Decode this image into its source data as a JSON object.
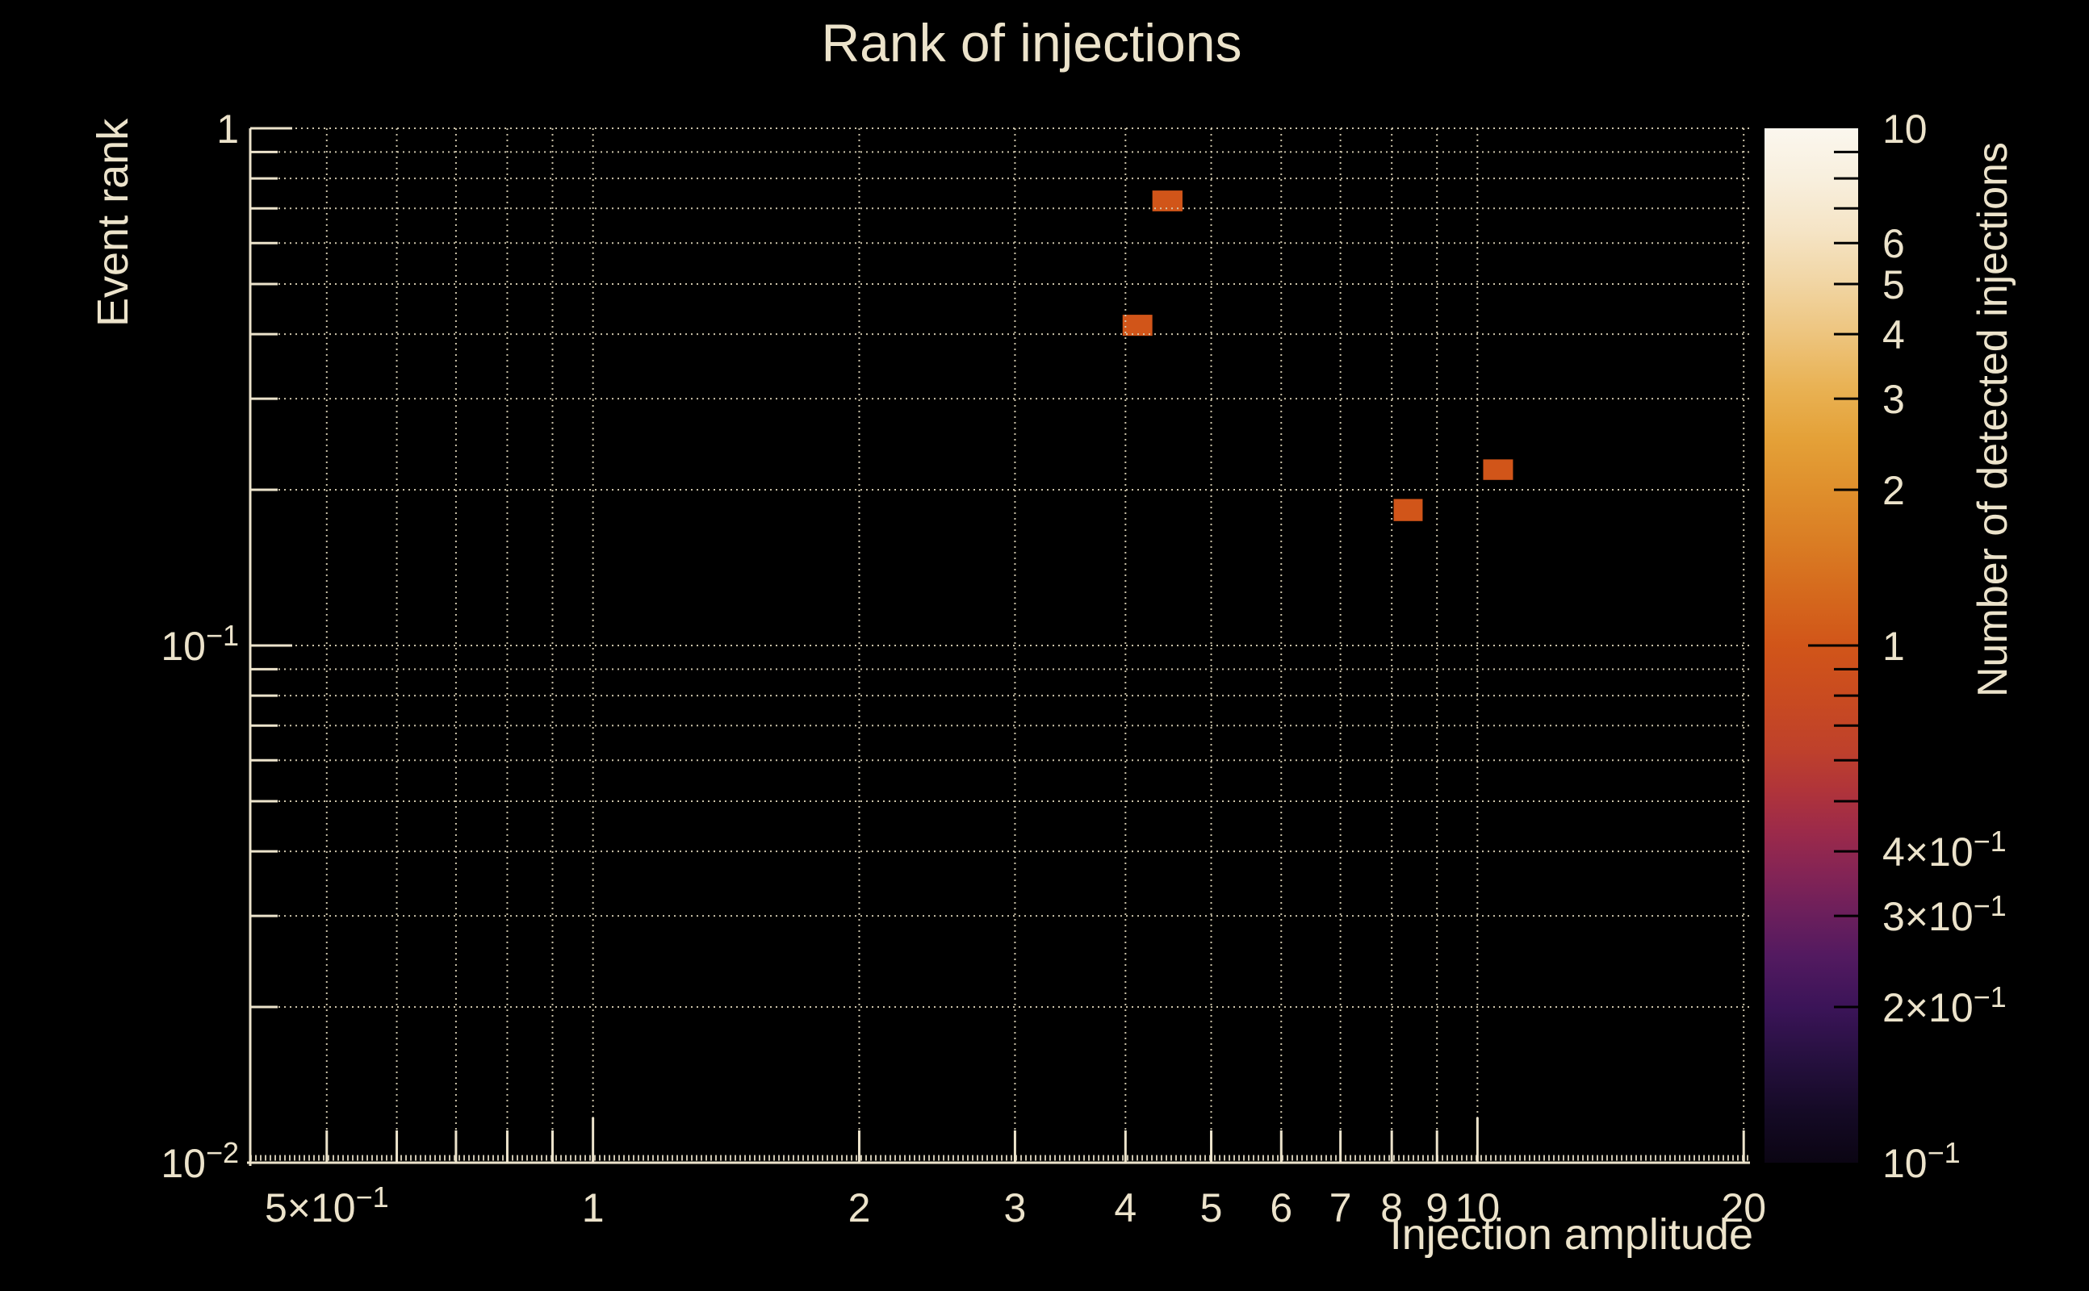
{
  "colors": {
    "background": "#000000",
    "foreground": "#ece3cb",
    "grid": "#d6cdb2",
    "cell_value_1": "#d15519"
  },
  "chart_data": {
    "type": "heatmap",
    "title": "Rank of injections",
    "xlabel": "Injection amplitude",
    "ylabel": "Event rank",
    "zlabel": "Number of detected injections",
    "xscale": "log",
    "yscale": "log",
    "zscale": "log",
    "xlim": [
      0.4097,
      20.33
    ],
    "ylim": [
      0.01,
      1
    ],
    "zlim": [
      0.1,
      10
    ],
    "grid": true,
    "x_gridlines": [
      0.5,
      0.6,
      0.7,
      0.8,
      0.9,
      1,
      2,
      3,
      4,
      5,
      6,
      7,
      8,
      9,
      10,
      20
    ],
    "y_gridlines": [
      1,
      0.9,
      0.8,
      0.7,
      0.6,
      0.5,
      0.4,
      0.3,
      0.2,
      0.1,
      0.09,
      0.08,
      0.07,
      0.06,
      0.05,
      0.04,
      0.03,
      0.02
    ],
    "x_tick_labels": [
      {
        "v": 0.5,
        "label": "5×10^−1"
      },
      {
        "v": 1,
        "label": "1"
      },
      {
        "v": 2,
        "label": "2"
      },
      {
        "v": 3,
        "label": "3"
      },
      {
        "v": 4,
        "label": "4"
      },
      {
        "v": 5,
        "label": "5"
      },
      {
        "v": 6,
        "label": "6"
      },
      {
        "v": 7,
        "label": "7"
      },
      {
        "v": 8,
        "label": "8"
      },
      {
        "v": 9,
        "label": "9"
      },
      {
        "v": 10,
        "label": "10"
      },
      {
        "v": 20,
        "label": "20"
      }
    ],
    "y_tick_labels": [
      {
        "v": 1,
        "label": "1"
      },
      {
        "v": 0.1,
        "label": "10^−1"
      },
      {
        "v": 0.01,
        "label": "10^−2"
      }
    ],
    "x_major_ticks": [
      1,
      10
    ],
    "y_major_ticks": [
      1,
      0.1,
      0.01
    ],
    "cells": [
      {
        "x0": 4.29,
        "x1": 4.64,
        "y0": 0.691,
        "y1": 0.758,
        "value": 1
      },
      {
        "x0": 3.97,
        "x1": 4.29,
        "y0": 0.397,
        "y1": 0.436,
        "value": 1
      },
      {
        "x0": 8.04,
        "x1": 8.67,
        "y0": 0.174,
        "y1": 0.192,
        "value": 1
      },
      {
        "x0": 10.15,
        "x1": 10.97,
        "y0": 0.209,
        "y1": 0.229,
        "value": 1
      }
    ],
    "colorbar": {
      "title": "Number of detected injections",
      "scale": "log",
      "range": [
        0.1,
        10
      ],
      "labels": [
        {
          "v": 10,
          "label": "10"
        },
        {
          "v": 6,
          "label": "6"
        },
        {
          "v": 5,
          "label": "5"
        },
        {
          "v": 4,
          "label": "4"
        },
        {
          "v": 3,
          "label": "3"
        },
        {
          "v": 2,
          "label": "2"
        },
        {
          "v": 1,
          "label": "1"
        },
        {
          "v": 0.4,
          "label": "4×10^−1"
        },
        {
          "v": 0.3,
          "label": "3×10^−1"
        },
        {
          "v": 0.2,
          "label": "2×10^−1"
        },
        {
          "v": 0.1,
          "label": "10^−1"
        }
      ],
      "minor_ticks": [
        9,
        8,
        7,
        6,
        5,
        4,
        3,
        2,
        0.9,
        0.8,
        0.7,
        0.6,
        0.5,
        0.4,
        0.3,
        0.2
      ],
      "major_ticks": [
        1
      ],
      "gradient_stops": [
        [
          0.0,
          "#0b0513"
        ],
        [
          0.05,
          "#150a26"
        ],
        [
          0.1,
          "#26103f"
        ],
        [
          0.15,
          "#3b1458"
        ],
        [
          0.2,
          "#531a60"
        ],
        [
          0.24,
          "#6b1f5c"
        ],
        [
          0.28,
          "#842455"
        ],
        [
          0.32,
          "#9c2a4a"
        ],
        [
          0.36,
          "#b0343a"
        ],
        [
          0.4,
          "#bf412b"
        ],
        [
          0.45,
          "#c94b20"
        ],
        [
          0.5,
          "#d15519"
        ],
        [
          0.55,
          "#d5691d"
        ],
        [
          0.6,
          "#da7d24"
        ],
        [
          0.65,
          "#df8f2c"
        ],
        [
          0.7,
          "#e4a138"
        ],
        [
          0.75,
          "#e9b254"
        ],
        [
          0.8,
          "#edc47d"
        ],
        [
          0.85,
          "#f1d5a3"
        ],
        [
          0.9,
          "#f5e4c5"
        ],
        [
          0.95,
          "#f8efdd"
        ],
        [
          1.0,
          "#fbf7ee"
        ]
      ]
    }
  }
}
